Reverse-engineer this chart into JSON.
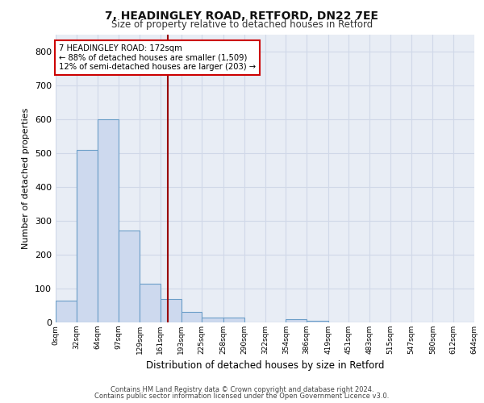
{
  "title_line1": "7, HEADINGLEY ROAD, RETFORD, DN22 7EE",
  "title_line2": "Size of property relative to detached houses in Retford",
  "xlabel": "Distribution of detached houses by size in Retford",
  "ylabel": "Number of detached properties",
  "bar_color": "#cdd9ee",
  "bar_edge_color": "#6b9ec8",
  "background_color": "#e8edf5",
  "grid_color": "#d0d8e8",
  "annotation_line_color": "#990000",
  "annotation_box_color": "#cc0000",
  "annotation_text": "7 HEADINGLEY ROAD: 172sqm\n← 88% of detached houses are smaller (1,509)\n12% of semi-detached houses are larger (203) →",
  "property_size": 172,
  "footnote_line1": "Contains HM Land Registry data © Crown copyright and database right 2024.",
  "footnote_line2": "Contains public sector information licensed under the Open Government Licence v3.0.",
  "bin_edges": [
    0,
    32,
    64,
    97,
    129,
    161,
    193,
    225,
    258,
    290,
    322,
    354,
    386,
    419,
    451,
    483,
    515,
    547,
    580,
    612,
    644
  ],
  "bin_labels": [
    "0sqm",
    "32sqm",
    "64sqm",
    "97sqm",
    "129sqm",
    "161sqm",
    "193sqm",
    "225sqm",
    "258sqm",
    "290sqm",
    "322sqm",
    "354sqm",
    "386sqm",
    "419sqm",
    "451sqm",
    "483sqm",
    "515sqm",
    "547sqm",
    "580sqm",
    "612sqm",
    "644sqm"
  ],
  "counts": [
    65,
    510,
    600,
    270,
    115,
    70,
    30,
    15,
    15,
    0,
    0,
    10,
    5,
    0,
    0,
    0,
    0,
    0,
    0,
    0
  ],
  "ylim": [
    0,
    850
  ],
  "yticks": [
    0,
    100,
    200,
    300,
    400,
    500,
    600,
    700,
    800
  ]
}
